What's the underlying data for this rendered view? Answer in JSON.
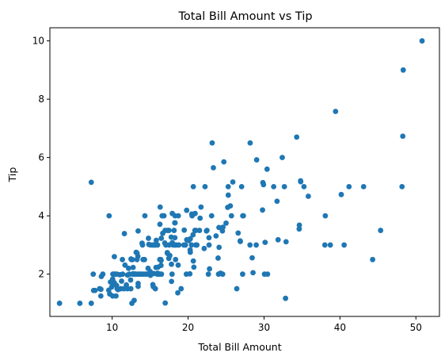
{
  "chart_data": {
    "type": "scatter",
    "title": "Total Bill Amount vs Tip",
    "xlabel": "Total Bill Amount",
    "ylabel": "Tip",
    "xlim": [
      1.8,
      53.1
    ],
    "ylim": [
      0.55,
      10.45
    ],
    "xticks": [
      10,
      20,
      30,
      40,
      50
    ],
    "yticks": [
      2,
      4,
      6,
      8,
      10
    ],
    "grid": false,
    "marker_color": "#1f77b4",
    "series": [
      {
        "points": [
          [
            16.99,
            1.01
          ],
          [
            10.34,
            1.66
          ],
          [
            21.01,
            3.5
          ],
          [
            23.68,
            3.31
          ],
          [
            24.59,
            3.61
          ],
          [
            25.29,
            4.71
          ],
          [
            8.77,
            2.0
          ],
          [
            26.88,
            3.12
          ],
          [
            15.04,
            1.96
          ],
          [
            14.78,
            3.23
          ],
          [
            10.27,
            1.71
          ],
          [
            35.26,
            5.0
          ],
          [
            15.42,
            1.57
          ],
          [
            18.43,
            3.0
          ],
          [
            14.83,
            3.02
          ],
          [
            21.58,
            3.92
          ],
          [
            10.33,
            1.67
          ],
          [
            16.29,
            3.71
          ],
          [
            16.97,
            3.5
          ],
          [
            20.65,
            3.35
          ],
          [
            17.92,
            4.08
          ],
          [
            20.29,
            2.75
          ],
          [
            15.77,
            2.23
          ],
          [
            39.42,
            7.58
          ],
          [
            19.82,
            3.18
          ],
          [
            17.81,
            2.34
          ],
          [
            13.37,
            2.0
          ],
          [
            12.69,
            2.0
          ],
          [
            21.7,
            4.3
          ],
          [
            19.65,
            3.0
          ],
          [
            9.55,
            1.45
          ],
          [
            18.35,
            2.5
          ],
          [
            15.06,
            3.0
          ],
          [
            20.69,
            2.45
          ],
          [
            17.78,
            3.27
          ],
          [
            24.06,
            3.6
          ],
          [
            16.31,
            2.0
          ],
          [
            16.93,
            3.07
          ],
          [
            18.69,
            2.31
          ],
          [
            31.27,
            5.0
          ],
          [
            16.04,
            2.24
          ],
          [
            17.46,
            2.54
          ],
          [
            13.94,
            3.06
          ],
          [
            9.68,
            1.32
          ],
          [
            30.4,
            5.6
          ],
          [
            18.29,
            3.0
          ],
          [
            22.23,
            5.0
          ],
          [
            32.4,
            6.0
          ],
          [
            28.55,
            2.05
          ],
          [
            18.04,
            3.0
          ],
          [
            12.54,
            2.5
          ],
          [
            10.29,
            2.6
          ],
          [
            34.81,
            5.2
          ],
          [
            9.94,
            1.56
          ],
          [
            25.56,
            4.34
          ],
          [
            19.49,
            3.51
          ],
          [
            38.01,
            3.0
          ],
          [
            26.41,
            1.5
          ],
          [
            11.24,
            1.76
          ],
          [
            48.27,
            6.73
          ],
          [
            20.29,
            3.21
          ],
          [
            13.81,
            2.0
          ],
          [
            11.02,
            1.98
          ],
          [
            18.29,
            3.76
          ],
          [
            17.59,
            2.64
          ],
          [
            20.08,
            3.15
          ],
          [
            16.45,
            2.47
          ],
          [
            3.07,
            1.0
          ],
          [
            20.23,
            2.01
          ],
          [
            15.01,
            2.09
          ],
          [
            12.02,
            1.97
          ],
          [
            17.07,
            3.0
          ],
          [
            26.86,
            3.14
          ],
          [
            25.28,
            5.0
          ],
          [
            14.73,
            2.2
          ],
          [
            10.51,
            1.25
          ],
          [
            17.92,
            3.08
          ],
          [
            27.2,
            4.0
          ],
          [
            22.76,
            3.0
          ],
          [
            17.29,
            2.71
          ],
          [
            19.44,
            3.0
          ],
          [
            16.66,
            3.4
          ],
          [
            10.07,
            1.83
          ],
          [
            32.68,
            5.0
          ],
          [
            15.98,
            2.03
          ],
          [
            34.83,
            5.17
          ],
          [
            13.03,
            2.0
          ],
          [
            18.28,
            4.0
          ],
          [
            24.71,
            5.85
          ],
          [
            21.16,
            3.0
          ],
          [
            28.97,
            3.0
          ],
          [
            22.49,
            3.5
          ],
          [
            5.75,
            1.0
          ],
          [
            16.32,
            4.3
          ],
          [
            22.75,
            3.25
          ],
          [
            40.17,
            4.73
          ],
          [
            27.28,
            4.0
          ],
          [
            12.03,
            1.5
          ],
          [
            21.01,
            3.0
          ],
          [
            12.46,
            1.5
          ],
          [
            11.35,
            2.5
          ],
          [
            15.38,
            3.0
          ],
          [
            44.3,
            2.5
          ],
          [
            22.42,
            3.48
          ],
          [
            20.92,
            4.08
          ],
          [
            15.36,
            1.64
          ],
          [
            20.49,
            4.06
          ],
          [
            25.21,
            4.29
          ],
          [
            18.24,
            3.76
          ],
          [
            14.31,
            4.0
          ],
          [
            14.0,
            3.0
          ],
          [
            7.25,
            1.0
          ],
          [
            38.07,
            4.0
          ],
          [
            23.95,
            2.55
          ],
          [
            25.71,
            4.0
          ],
          [
            17.31,
            3.5
          ],
          [
            29.93,
            5.07
          ],
          [
            10.65,
            1.5
          ],
          [
            12.43,
            1.8
          ],
          [
            24.08,
            2.92
          ],
          [
            11.69,
            2.31
          ],
          [
            13.42,
            1.68
          ],
          [
            14.26,
            2.5
          ],
          [
            15.95,
            2.0
          ],
          [
            12.48,
            2.52
          ],
          [
            29.8,
            4.2
          ],
          [
            8.52,
            1.48
          ],
          [
            14.52,
            2.0
          ],
          [
            11.38,
            2.0
          ],
          [
            22.82,
            2.18
          ],
          [
            19.08,
            1.5
          ],
          [
            20.27,
            2.83
          ],
          [
            11.17,
            1.5
          ],
          [
            12.26,
            2.0
          ],
          [
            18.26,
            3.25
          ],
          [
            8.51,
            1.25
          ],
          [
            10.33,
            2.0
          ],
          [
            14.15,
            2.0
          ],
          [
            16.0,
            2.0
          ],
          [
            13.16,
            2.75
          ],
          [
            17.47,
            3.5
          ],
          [
            34.3,
            6.7
          ],
          [
            41.19,
            5.0
          ],
          [
            27.05,
            5.0
          ],
          [
            16.43,
            2.3
          ],
          [
            8.35,
            1.5
          ],
          [
            18.64,
            1.36
          ],
          [
            11.87,
            1.63
          ],
          [
            9.78,
            1.73
          ],
          [
            7.51,
            2.0
          ],
          [
            14.07,
            2.5
          ],
          [
            13.13,
            2.0
          ],
          [
            17.26,
            2.74
          ],
          [
            24.55,
            2.0
          ],
          [
            19.77,
            2.0
          ],
          [
            29.85,
            5.14
          ],
          [
            48.17,
            5.0
          ],
          [
            25.0,
            3.75
          ],
          [
            13.39,
            2.61
          ],
          [
            16.49,
            2.0
          ],
          [
            21.5,
            3.5
          ],
          [
            12.66,
            2.5
          ],
          [
            16.21,
            2.0
          ],
          [
            13.81,
            2.0
          ],
          [
            17.51,
            3.0
          ],
          [
            24.52,
            3.48
          ],
          [
            20.76,
            2.24
          ],
          [
            31.71,
            4.5
          ],
          [
            10.59,
            1.61
          ],
          [
            10.63,
            2.0
          ],
          [
            50.81,
            10.0
          ],
          [
            15.81,
            3.16
          ],
          [
            7.25,
            5.15
          ],
          [
            31.85,
            3.18
          ],
          [
            16.82,
            4.0
          ],
          [
            32.9,
            3.11
          ],
          [
            17.89,
            2.0
          ],
          [
            14.48,
            2.0
          ],
          [
            9.6,
            4.0
          ],
          [
            34.63,
            3.55
          ],
          [
            34.65,
            3.68
          ],
          [
            23.33,
            5.65
          ],
          [
            45.35,
            3.5
          ],
          [
            23.17,
            6.5
          ],
          [
            40.55,
            3.0
          ],
          [
            20.69,
            5.0
          ],
          [
            20.9,
            3.5
          ],
          [
            30.46,
            2.0
          ],
          [
            18.15,
            3.5
          ],
          [
            23.1,
            4.0
          ],
          [
            15.69,
            1.5
          ],
          [
            19.81,
            4.19
          ],
          [
            28.44,
            2.56
          ],
          [
            15.48,
            2.02
          ],
          [
            16.58,
            4.0
          ],
          [
            7.56,
            1.44
          ],
          [
            10.34,
            2.0
          ],
          [
            43.11,
            5.0
          ],
          [
            13.0,
            2.0
          ],
          [
            13.51,
            2.0
          ],
          [
            18.71,
            4.0
          ],
          [
            12.74,
            2.01
          ],
          [
            13.0,
            2.0
          ],
          [
            16.4,
            2.5
          ],
          [
            20.53,
            4.0
          ],
          [
            16.47,
            3.23
          ],
          [
            26.59,
            3.41
          ],
          [
            38.73,
            3.0
          ],
          [
            24.27,
            2.03
          ],
          [
            12.76,
            2.23
          ],
          [
            30.06,
            2.0
          ],
          [
            25.89,
            5.16
          ],
          [
            48.33,
            9.0
          ],
          [
            13.27,
            2.5
          ],
          [
            28.17,
            6.5
          ],
          [
            12.9,
            1.1
          ],
          [
            28.15,
            3.0
          ],
          [
            11.59,
            1.5
          ],
          [
            7.74,
            1.44
          ],
          [
            30.14,
            3.09
          ],
          [
            12.16,
            2.2
          ],
          [
            13.42,
            3.48
          ],
          [
            8.58,
            1.92
          ],
          [
            15.98,
            3.0
          ],
          [
            13.42,
            1.58
          ],
          [
            16.27,
            2.5
          ],
          [
            10.09,
            2.0
          ],
          [
            20.45,
            3.0
          ],
          [
            13.28,
            2.72
          ],
          [
            22.12,
            2.88
          ],
          [
            24.01,
            2.0
          ],
          [
            15.69,
            3.0
          ],
          [
            11.61,
            3.39
          ],
          [
            10.77,
            1.47
          ],
          [
            15.53,
            3.0
          ],
          [
            10.07,
            1.25
          ],
          [
            12.6,
            1.0
          ],
          [
            32.83,
            1.17
          ],
          [
            35.83,
            4.67
          ],
          [
            29.03,
            5.92
          ],
          [
            27.18,
            2.0
          ],
          [
            22.67,
            2.0
          ],
          [
            17.82,
            1.75
          ],
          [
            18.78,
            3.0
          ]
        ]
      }
    ]
  }
}
